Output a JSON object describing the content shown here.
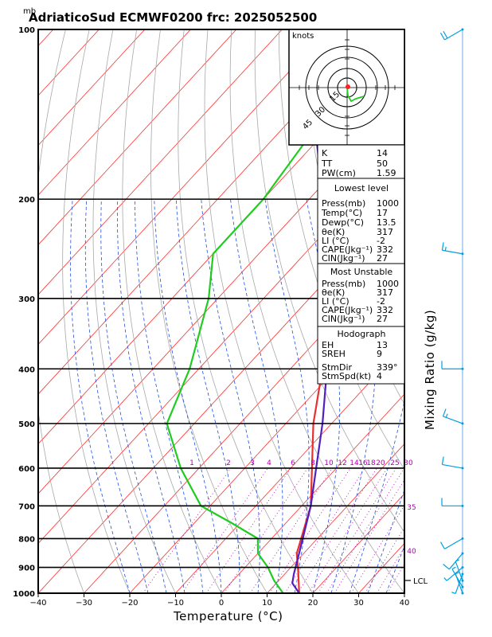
{
  "title": "AdriaticoSud ECMWF0200 frc: 2025052500",
  "pressure_unit": "mb",
  "xlabel": "Temperature (°C)",
  "ylabel": "Mixing Ratio (g/kg)",
  "colors": {
    "temperature": "#e83030",
    "dewpoint": "#20cc20",
    "parcel": "#5020c0",
    "isotherm": "#ff3030",
    "dry_adiabat": "#a8a8a8",
    "moist_adiabat": "#2050e0",
    "mixing_ratio": "#b000b0",
    "hodograph_wind": "#20cc20"
  },
  "hodograph": {
    "unit": "knots",
    "ring_labels": [
      "15",
      "30",
      "45"
    ]
  },
  "indices": {
    "rows": [
      {
        "label": "K",
        "value": "14"
      },
      {
        "label": "TT",
        "value": "50"
      },
      {
        "label": "PW(cm)",
        "value": "1.59"
      }
    ]
  },
  "lowest_level": {
    "header": "Lowest level",
    "rows": [
      {
        "label": "Press(mb)",
        "value": "1000"
      },
      {
        "label": "Temp(°C)",
        "value": "17"
      },
      {
        "label": "Dewp(°C)",
        "value": "13.5"
      },
      {
        "label": "θe(K)",
        "value": "317"
      },
      {
        "label": "LI (°C)",
        "value": "-2"
      },
      {
        "label": "CAPE(Jkg⁻¹)",
        "value": "332"
      },
      {
        "label": "CIN(Jkg⁻¹)",
        "value": "27"
      }
    ]
  },
  "most_unstable": {
    "header": "Most Unstable",
    "rows": [
      {
        "label": "Press(mb)",
        "value": "1000"
      },
      {
        "label": "θe(K)",
        "value": "317"
      },
      {
        "label": "LI (°C)",
        "value": "-2"
      },
      {
        "label": "CAPE(Jkg⁻¹)",
        "value": "332"
      },
      {
        "label": "CIN(Jkg⁻¹)",
        "value": "27"
      }
    ]
  },
  "hodograph_stats": {
    "header": "Hodograph",
    "rows": [
      {
        "label": "EH",
        "value": "13"
      },
      {
        "label": "SREH",
        "value": "9"
      },
      {
        "label": "StmDir",
        "value": "339°"
      },
      {
        "label": "StmSpd(kt)",
        "value": "4"
      }
    ]
  },
  "lcl_label": "LCL",
  "chart_data": {
    "type": "line",
    "title": "AdriaticoSud ECMWF0200 frc: 2025052500",
    "xlabel": "Temperature (°C)",
    "ylabel": "Mixing Ratio (g/kg)",
    "y_unit": "mb",
    "xlim": [
      -40,
      40
    ],
    "ylim": [
      1000,
      100
    ],
    "y_scale": "log",
    "x_ticks": [
      -40,
      -30,
      -20,
      -10,
      0,
      10,
      20,
      30,
      40
    ],
    "x_tick_labels": [
      "−40",
      "−30",
      "−20",
      "−10",
      "0",
      "10",
      "20",
      "30",
      "40"
    ],
    "pressure_ticks": [
      100,
      200,
      300,
      400,
      500,
      600,
      700,
      800,
      900,
      1000
    ],
    "mixing_ratio_lines": [
      1,
      2,
      3,
      4,
      6,
      8,
      10,
      12,
      14,
      16,
      18,
      20,
      25,
      30,
      35,
      40
    ],
    "mixing_ratio_labels": [
      "1",
      "2",
      "3",
      "4",
      "6",
      "8",
      "10",
      "12",
      "14",
      "16",
      "18",
      "20",
      "25",
      "30",
      "35",
      "40"
    ],
    "series": [
      {
        "name": "Temperature",
        "p": [
          1000,
          925,
          850,
          700,
          500,
          400,
          300,
          250,
          200,
          100
        ],
        "t": [
          17,
          13,
          8.5,
          2,
          -14,
          -23,
          -37,
          -46,
          -46,
          -43
        ]
      },
      {
        "name": "Dewpoint",
        "p": [
          1000,
          950,
          900,
          850,
          800,
          750,
          700,
          600,
          500,
          400,
          300,
          250,
          200,
          100
        ],
        "t": [
          13.5,
          9,
          5,
          0,
          -3,
          -12,
          -22,
          -34,
          -46,
          -52,
          -62,
          -70,
          -70,
          -77
        ]
      },
      {
        "name": "Parcel",
        "p": [
          1000,
          960,
          925,
          850,
          700,
          500,
          400,
          300,
          250,
          200,
          120
        ],
        "t": [
          17,
          13.5,
          12,
          9,
          2,
          -12,
          -22,
          -37,
          -47,
          -57,
          -85
        ]
      }
    ],
    "winds": [
      {
        "p": 1000,
        "dir": 340,
        "spd": 5
      },
      {
        "p": 975,
        "dir": 330,
        "spd": 5
      },
      {
        "p": 950,
        "dir": 340,
        "spd": 5
      },
      {
        "p": 925,
        "dir": 200,
        "spd": 5
      },
      {
        "p": 900,
        "dir": 230,
        "spd": 5
      },
      {
        "p": 850,
        "dir": 220,
        "spd": 10
      },
      {
        "p": 800,
        "dir": 240,
        "spd": 10
      },
      {
        "p": 700,
        "dir": 270,
        "spd": 10
      },
      {
        "p": 600,
        "dir": 280,
        "spd": 10
      },
      {
        "p": 500,
        "dir": 290,
        "spd": 15
      },
      {
        "p": 400,
        "dir": 270,
        "spd": 10
      },
      {
        "p": 250,
        "dir": 280,
        "spd": 15
      },
      {
        "p": 100,
        "dir": 240,
        "spd": 20
      }
    ]
  }
}
